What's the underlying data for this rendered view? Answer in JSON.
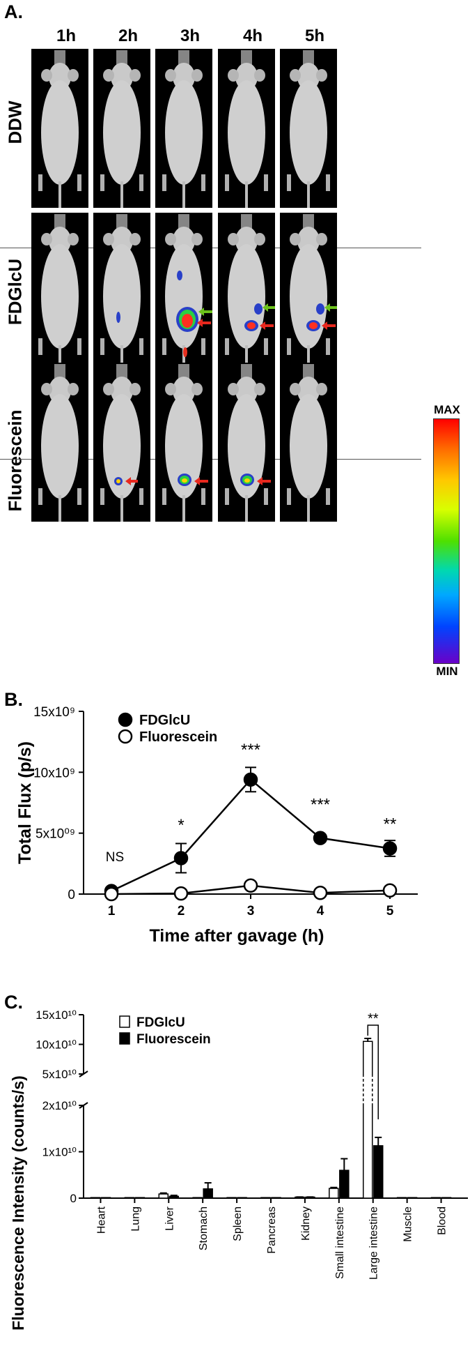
{
  "panel_a": {
    "letter": "A.",
    "time_labels": [
      "1h",
      "2h",
      "3h",
      "4h",
      "5h"
    ],
    "row_labels": [
      "DDW",
      "FDGlcU",
      "Fluorescein"
    ],
    "colorbar": {
      "max_label": "MAX",
      "min_label": "MIN"
    },
    "signals": {
      "DDW": [
        null,
        null,
        null,
        null,
        null
      ],
      "FDGlcU": [
        "none",
        "weak",
        "strong",
        "moderate",
        "moderate"
      ],
      "Fluorescein": [
        "none",
        "weak",
        "moderate",
        "moderate",
        "none"
      ]
    },
    "arrows": {
      "red": "#e8281e",
      "green": "#6cc21c"
    }
  },
  "chart_data": [
    {
      "panel": "B.",
      "type": "line",
      "x": [
        1,
        2,
        3,
        4,
        5
      ],
      "xticks": [
        "1",
        "2",
        "3",
        "4",
        "5"
      ],
      "xlabel": "Time after gavage (h)",
      "ylabel": "Total Flux (p/s)",
      "yticks": [
        "0",
        "5x10⁰⁹",
        "10x10⁹",
        "15x10⁹"
      ],
      "ylim": [
        0,
        15000000000
      ],
      "series": [
        {
          "name": "FDGlcU",
          "marker": "filled-circle",
          "values": [
            250000000,
            2950000000,
            9400000000,
            4600000000,
            3750000000
          ],
          "errors": [
            150000000,
            1200000000,
            1000000000,
            150000000,
            650000000
          ]
        },
        {
          "name": "Fluorescein",
          "marker": "open-circle",
          "values": [
            0,
            50000000,
            700000000,
            100000000,
            300000000
          ],
          "errors": [
            0,
            0,
            0,
            0,
            0
          ]
        }
      ],
      "annotations": [
        "NS",
        "*",
        "***",
        "***",
        "**"
      ],
      "legend_position": "top-left"
    },
    {
      "panel": "C.",
      "type": "bar",
      "categories": [
        "Heart",
        "Lung",
        "Liver",
        "Stomach",
        "Spleen",
        "Pancreas",
        "Kidney",
        "Small intestine",
        "Large intestine",
        "Muscle",
        "Blood"
      ],
      "ylabel": "Fluorescence Intensity (counts/s)",
      "axis_break": true,
      "lower_yticks": [
        "0",
        "1x10¹⁰",
        "2x10¹⁰"
      ],
      "upper_yticks": [
        "5x10¹⁰",
        "10x10¹⁰",
        "15x10¹⁰"
      ],
      "lower_ylim": [
        0,
        20000000000
      ],
      "upper_ylim": [
        50000000000,
        150000000000
      ],
      "series": [
        {
          "name": "FDGlcU",
          "fill": "white",
          "values": [
            0,
            0,
            900000000,
            0,
            0,
            0,
            200000000,
            2100000000,
            105000000000,
            0,
            0
          ],
          "errors": [
            0,
            0,
            200000000,
            0,
            0,
            0,
            50000000,
            200000000,
            5000000000,
            0,
            0
          ]
        },
        {
          "name": "Fluorescein",
          "fill": "black",
          "values": [
            0,
            0,
            400000000,
            2000000000,
            0,
            0,
            200000000,
            6000000000,
            11300000000,
            0,
            0
          ],
          "errors": [
            0,
            0,
            200000000,
            1300000000,
            0,
            0,
            50000000,
            2500000000,
            1800000000,
            0,
            0
          ]
        }
      ],
      "significance": {
        "category": "Large intestine",
        "label": "**"
      },
      "legend_position": "top-left"
    }
  ]
}
